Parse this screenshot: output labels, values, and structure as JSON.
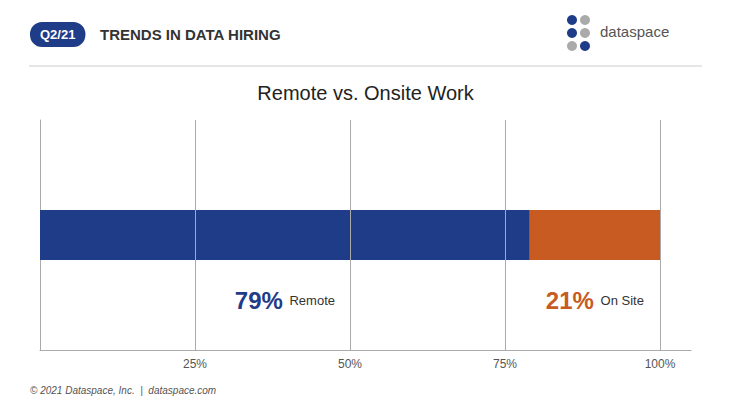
{
  "chart_data": {
    "type": "bar",
    "title": "Remote vs. Onsite Work",
    "orientation": "horizontal",
    "stacked": true,
    "categories": [
      null
    ],
    "series": [
      {
        "name": "Remote",
        "color": "#1F3C88",
        "values": [
          79
        ],
        "value_labels": [
          "79%"
        ]
      },
      {
        "name": "On Site",
        "color": "#C75B21",
        "values": [
          21
        ],
        "value_labels": [
          "21%"
        ]
      }
    ],
    "xlim": [
      0,
      105
    ],
    "xticks": [
      {
        "value": 25,
        "label": "25%"
      },
      {
        "value": 50,
        "label": "50%"
      },
      {
        "value": 75,
        "label": "75%"
      },
      {
        "value": 100,
        "label": "100%"
      }
    ],
    "grid": true,
    "data_labels": true,
    "tick_labels": "x",
    "annotations": [
      "Q2/21",
      "TRENDS IN DATA HIRING",
      "dataspace",
      "© 2021 Dataspace, Inc.  |  dataspace.com"
    ]
  }
}
